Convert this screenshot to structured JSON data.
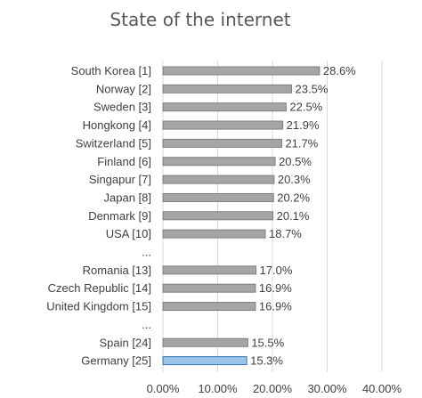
{
  "chart_data": {
    "type": "bar",
    "orientation": "horizontal",
    "title": "State of the internet",
    "xlabel": "",
    "ylabel": "",
    "xlim": [
      0,
      40
    ],
    "grid": true,
    "legend": "none",
    "value_suffix": "%",
    "categories": [
      "South Korea [1]",
      "Norway [2]",
      "Sweden [3]",
      "Hongkong [4]",
      "Switzerland [5]",
      "Finland [6]",
      "Singapur [7]",
      "Japan [8]",
      "Denmark [9]",
      "USA [10]",
      "...",
      "Romania [13]",
      "Czech Republic [14]",
      "United Kingdom [15]",
      "...",
      "Spain [24]",
      "Germany [25]"
    ],
    "values": [
      28.6,
      23.5,
      22.5,
      21.9,
      21.7,
      20.5,
      20.3,
      20.2,
      20.1,
      18.7,
      null,
      17.0,
      16.9,
      16.9,
      null,
      15.5,
      15.3
    ],
    "data_labels": [
      "28.6%",
      "23.5%",
      "22.5%",
      "21.9%",
      "21.7%",
      "20.5%",
      "20.3%",
      "20.2%",
      "20.1%",
      "18.7%",
      "",
      "17.0%",
      "16.9%",
      "16.9%",
      "",
      "15.5%",
      "15.3%"
    ],
    "ticks": [
      {
        "value": 0,
        "label": "0.00%"
      },
      {
        "value": 10,
        "label": "10.00%"
      },
      {
        "value": 20,
        "label": "20.00%"
      },
      {
        "value": 30,
        "label": "30.00%"
      },
      {
        "value": 40,
        "label": "40.00%"
      }
    ],
    "colors": {
      "default_fill": "#a5a5a5",
      "default_stroke": "#7f7f7f",
      "highlight_fill": "#9dc3e6",
      "highlight_stroke": "#2e75b6",
      "grid": "#d9d9d9"
    },
    "highlighted": "Germany [25]"
  }
}
